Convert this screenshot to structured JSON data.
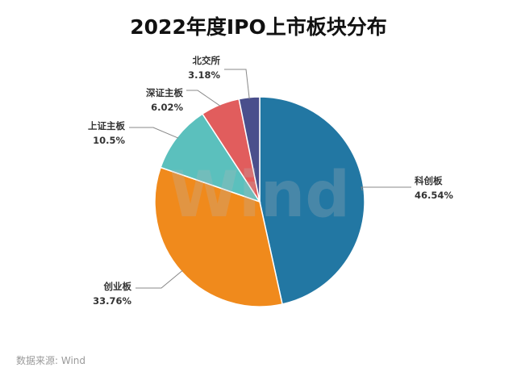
{
  "chart_data": {
    "type": "pie",
    "title": "2022年度IPO上市板块分布",
    "slices": [
      {
        "label": "科创板",
        "value": 46.54,
        "value_text": "46.54%",
        "color": "#2277a3"
      },
      {
        "label": "创业板",
        "value": 33.76,
        "value_text": "33.76%",
        "color": "#f08a1c"
      },
      {
        "label": "上证主板",
        "value": 10.5,
        "value_text": "10.5%",
        "color": "#5bc0bd"
      },
      {
        "label": "深证主板",
        "value": 6.02,
        "value_text": "6.02%",
        "color": "#e15d5d"
      },
      {
        "label": "北交所",
        "value": 3.18,
        "value_text": "3.18%",
        "color": "#4a4f8c"
      }
    ]
  },
  "watermark": "Wind",
  "source": "数据来源: Wind"
}
